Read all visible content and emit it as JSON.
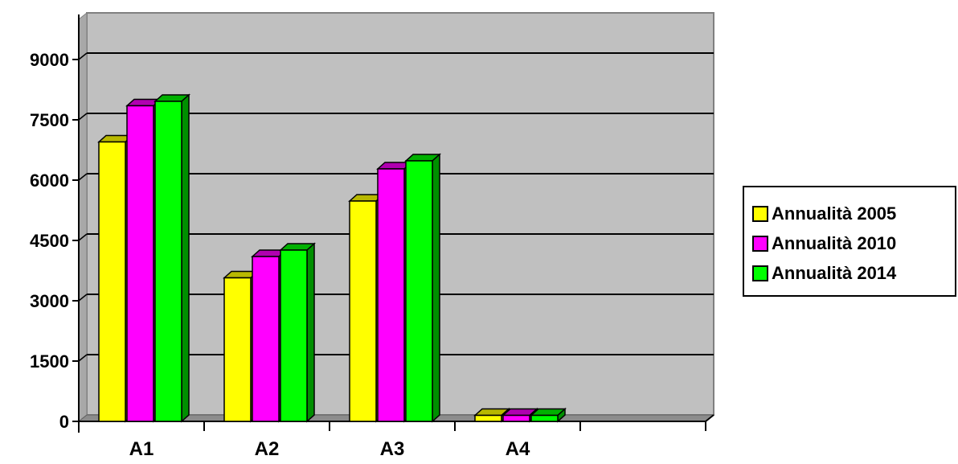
{
  "chart_data": {
    "type": "bar",
    "title": "",
    "xlabel": "",
    "ylabel": "",
    "categories": [
      "A1",
      "A2",
      "A3",
      "A4",
      ""
    ],
    "series": [
      {
        "name": "Annualità 2005",
        "values": [
          6950,
          3570,
          5480,
          150,
          null
        ],
        "color": "#ffff00",
        "top_color": "#b8b800",
        "side_color": "#9a9a00"
      },
      {
        "name": "Annualità 2010",
        "values": [
          7850,
          4100,
          6280,
          150,
          null
        ],
        "color": "#ff00ff",
        "top_color": "#b000b0",
        "side_color": "#8f008f"
      },
      {
        "name": "Annualità 2014",
        "values": [
          7960,
          4260,
          6480,
          150,
          null
        ],
        "color": "#00ff00",
        "top_color": "#00b000",
        "side_color": "#008f00"
      }
    ],
    "yticks": [
      0,
      1500,
      3000,
      4500,
      6000,
      7500,
      9000
    ],
    "ytick_labels": [
      "0",
      "1500",
      "3000",
      "4500",
      "6000",
      "7500",
      "9000"
    ],
    "ylim": [
      0,
      10000
    ],
    "grid": true,
    "legend_position": "right",
    "plot_background": "#c0c0c0",
    "legend": [
      "Annualità 2005",
      "Annualità 2010",
      "Annualità 2014"
    ]
  }
}
